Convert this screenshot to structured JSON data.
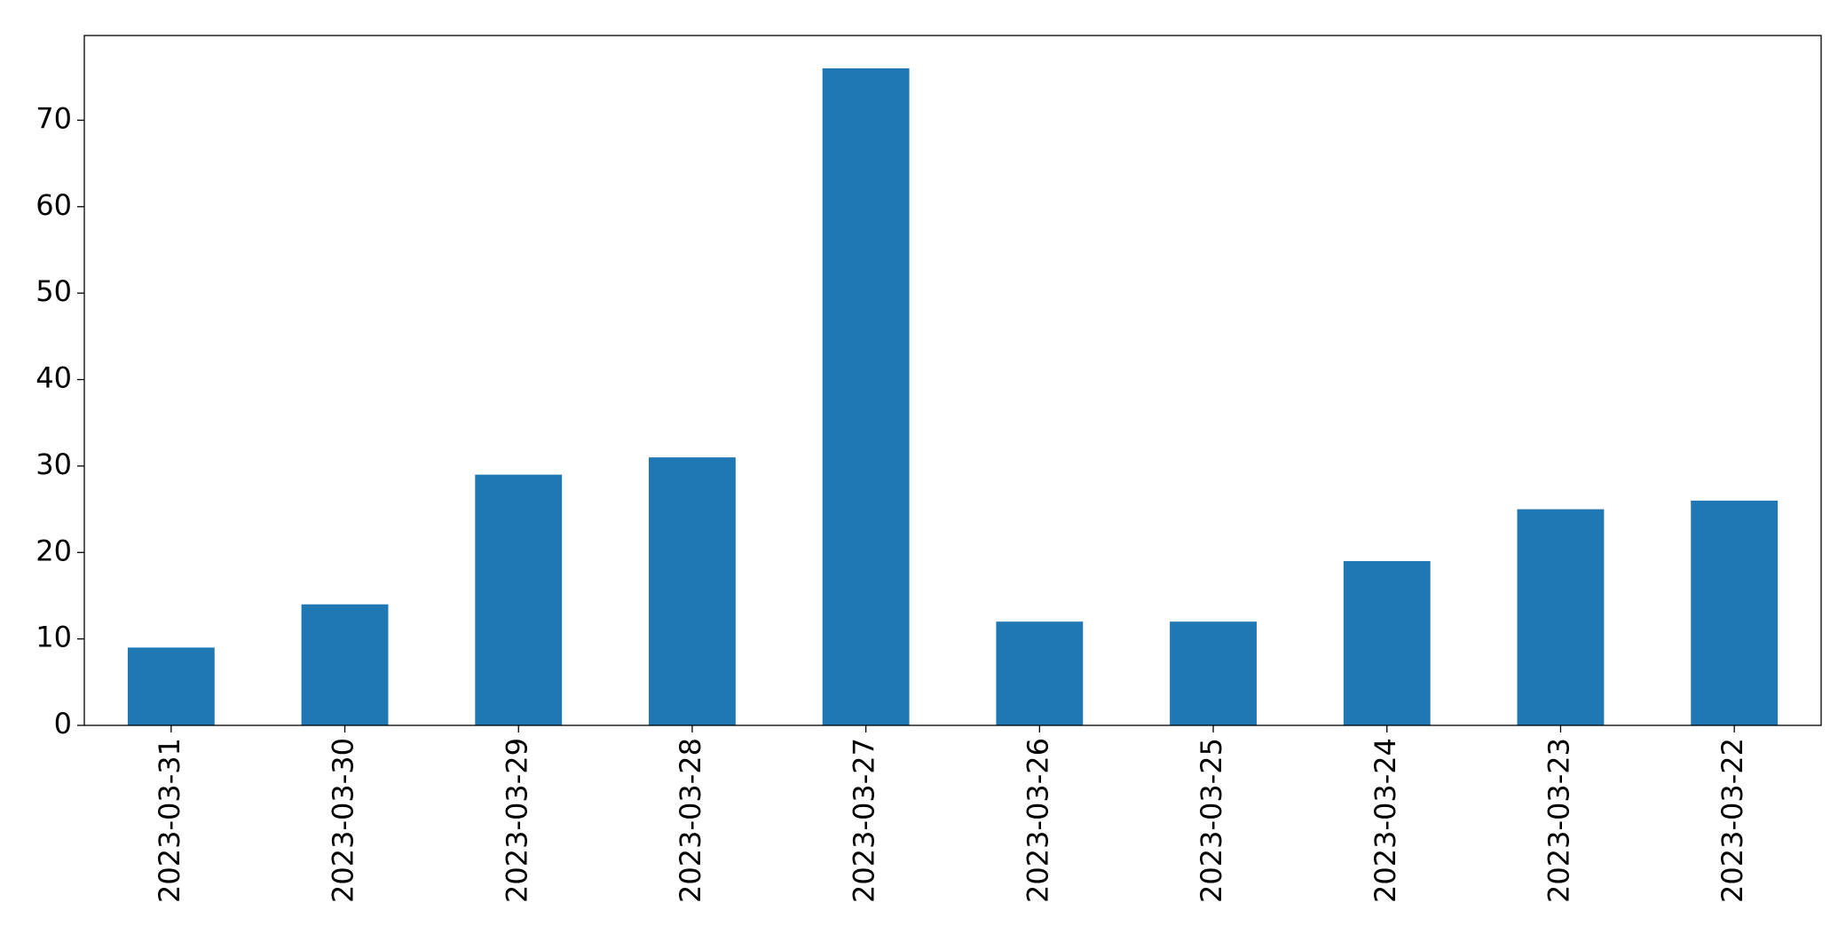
{
  "chart_data": {
    "type": "bar",
    "categories": [
      "2023-03-31",
      "2023-03-30",
      "2023-03-29",
      "2023-03-28",
      "2023-03-27",
      "2023-03-26",
      "2023-03-25",
      "2023-03-24",
      "2023-03-23",
      "2023-03-22"
    ],
    "values": [
      9,
      14,
      29,
      31,
      76,
      12,
      12,
      19,
      25,
      26
    ],
    "color": "#1f77b4",
    "ylim": [
      0,
      79.8
    ],
    "yticks": [
      0,
      10,
      20,
      30,
      40,
      50,
      60,
      70
    ],
    "grid": false
  }
}
